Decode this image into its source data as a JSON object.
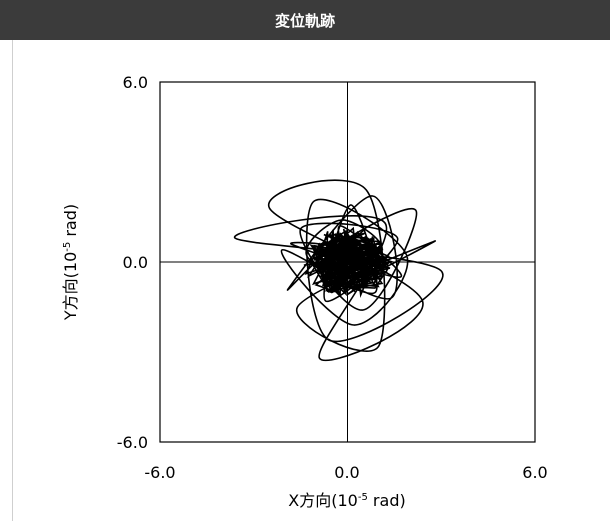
{
  "header": {
    "title": "変位軌跡"
  },
  "chart_data": {
    "type": "scatter",
    "title": "変位軌跡",
    "xlabel": {
      "prefix": "X方向(10",
      "sup": "-5",
      "suffix": " rad)"
    },
    "ylabel": {
      "prefix": "Y方向(10",
      "sup": "-5",
      "suffix": " rad)"
    },
    "xlim": [
      -6.0,
      6.0
    ],
    "ylim": [
      -6.0,
      6.0
    ],
    "x_ticks": [
      "-6.0",
      "0.0",
      "6.0"
    ],
    "y_ticks": [
      "6.0",
      "0.0",
      "-6.0"
    ],
    "zero_lines": true,
    "grid": false,
    "series": [
      {
        "mode": "line",
        "color": "#000000",
        "points": [
          [
            0.0,
            0.0
          ],
          [
            0.3,
            0.5
          ],
          [
            -0.4,
            0.9
          ],
          [
            0.6,
            -0.3
          ],
          [
            -0.8,
            -0.6
          ],
          [
            1.1,
            0.4
          ],
          [
            -0.2,
            1.4
          ],
          [
            -1.3,
            0.2
          ],
          [
            0.9,
            -1.0
          ],
          [
            0.1,
            1.9
          ],
          [
            -0.7,
            -1.3
          ],
          [
            1.6,
            0.8
          ],
          [
            -1.5,
            1.1
          ],
          [
            0.5,
            -1.6
          ],
          [
            2.2,
            1.7
          ],
          [
            -0.3,
            0.6
          ],
          [
            -1.9,
            -0.9
          ],
          [
            0.8,
            2.2
          ],
          [
            1.4,
            -1.2
          ],
          [
            -2.1,
            0.4
          ],
          [
            0.2,
            -2.1
          ],
          [
            1.9,
            0.2
          ],
          [
            -1.1,
            2.0
          ],
          [
            -0.6,
            -2.6
          ],
          [
            3.0,
            -0.3
          ],
          [
            -3.6,
            0.8
          ],
          [
            1.2,
            1.3
          ],
          [
            -0.9,
            -3.2
          ],
          [
            2.4,
            -1.3
          ],
          [
            -2.5,
            1.8
          ],
          [
            0.6,
            2.4
          ],
          [
            1.0,
            -2.8
          ],
          [
            -1.6,
            -1.5
          ],
          [
            2.8,
            0.7
          ],
          [
            -0.5,
            -1.0
          ],
          [
            0.4,
            0.3
          ],
          [
            -1.8,
            0.6
          ],
          [
            1.7,
            -0.5
          ],
          [
            -0.2,
            1.2
          ],
          [
            0.0,
            0.0
          ]
        ]
      }
    ]
  }
}
